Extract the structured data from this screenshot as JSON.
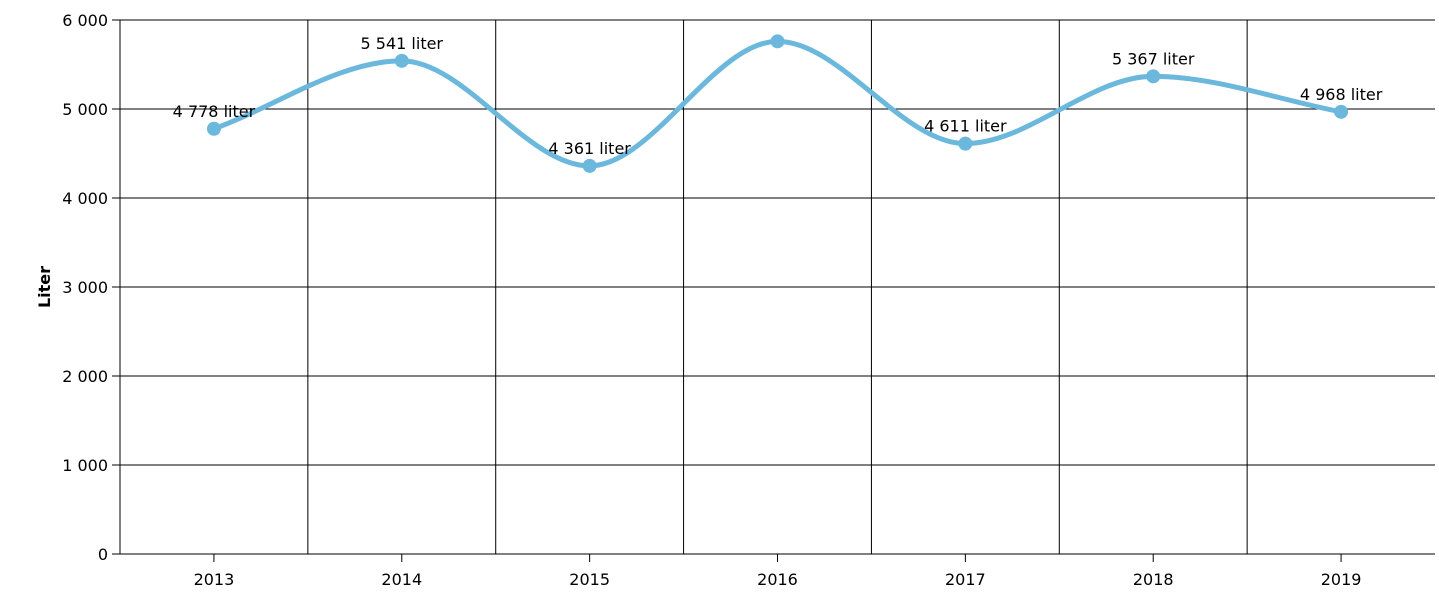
{
  "chart_data": {
    "type": "line",
    "title": "",
    "xlabel": "",
    "ylabel": "Liter",
    "categories": [
      "2013",
      "2014",
      "2015",
      "2016",
      "2017",
      "2018",
      "2019"
    ],
    "series": [
      {
        "values": [
          4778,
          5541,
          4361,
          5760,
          4611,
          5367,
          4968
        ],
        "labels": [
          "4 778 liter",
          "5 541 liter",
          "4 361 liter",
          "",
          "4 611 liter",
          "5 367 liter",
          "4 968 liter"
        ]
      }
    ],
    "ylim": [
      0,
      6000
    ],
    "yticks": [
      0,
      1000,
      2000,
      3000,
      4000,
      5000,
      6000
    ],
    "ytick_labels": [
      "0",
      "1 000",
      "2 000",
      "3 000",
      "4 000",
      "5 000",
      "6 000"
    ],
    "grid": true,
    "line_style": "smooth",
    "colors": {
      "line": "#6bb8dc",
      "grid": "#000000",
      "text": "#000000"
    }
  }
}
